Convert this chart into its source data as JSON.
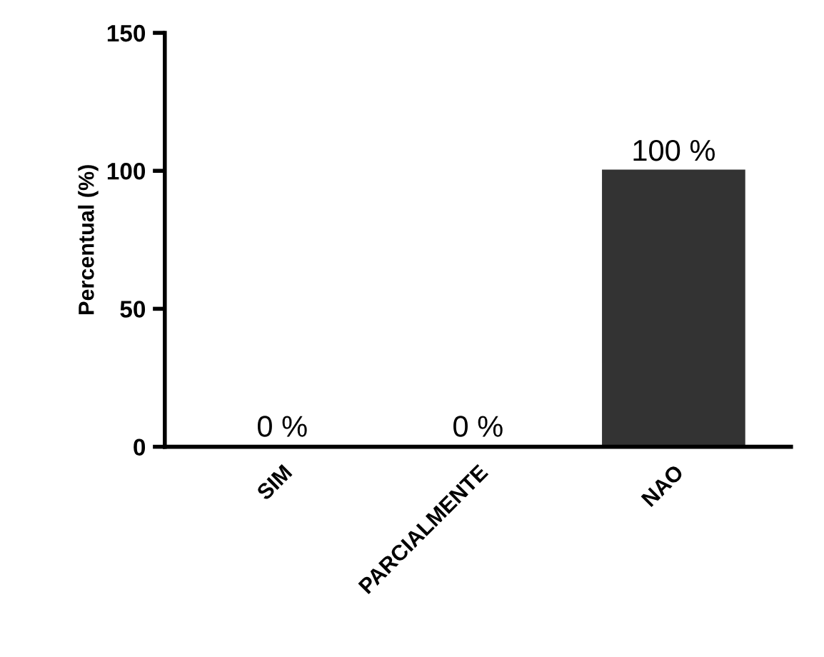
{
  "chart_data": {
    "type": "bar",
    "ylabel": "Percentual (%)",
    "categories": [
      "SIM",
      "PARCIALMENTE",
      "NAO"
    ],
    "values": [
      0,
      0,
      100
    ],
    "value_labels": [
      "0 %",
      "0 %",
      "100 %"
    ],
    "color": "#333333",
    "ylim": [
      0,
      150
    ],
    "yticks": [
      0,
      50,
      100,
      150
    ],
    "grid": false,
    "legend": false
  }
}
